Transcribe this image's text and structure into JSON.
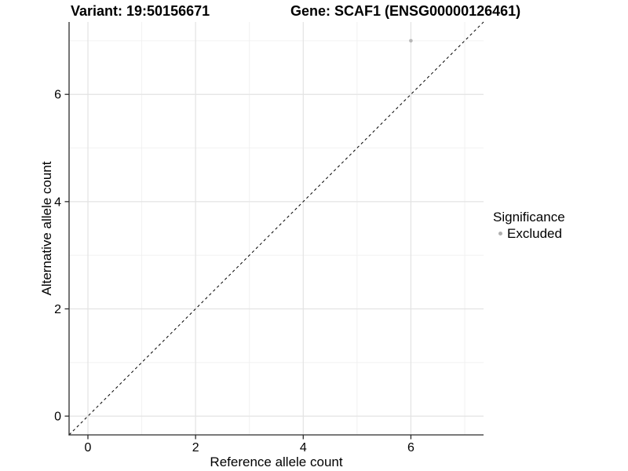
{
  "chart_data": {
    "type": "scatter",
    "titles": {
      "variant": "Variant: 19:50156671",
      "gene": "Gene: SCAF1 (ENSG00000126461)"
    },
    "xlabel": "Reference allele count",
    "ylabel": "Alternative allele count",
    "xlim": [
      -0.35,
      7.35
    ],
    "ylim": [
      -0.35,
      7.35
    ],
    "x_ticks": [
      0,
      2,
      4,
      6
    ],
    "y_ticks": [
      0,
      2,
      4,
      6
    ],
    "x_minor_gridlines": [
      1,
      3,
      5,
      7
    ],
    "y_minor_gridlines": [
      1,
      3,
      5,
      7
    ],
    "grid": true,
    "points": [
      {
        "x": 6,
        "y": 7,
        "significance": "Excluded"
      }
    ],
    "identity_line": {
      "slope": 1,
      "intercept": 0,
      "style": "dashed",
      "color": "#000000"
    },
    "legend": {
      "title": "Significance",
      "position": "right",
      "items": [
        {
          "label": "Excluded",
          "color": "#b0b0b0"
        }
      ]
    },
    "colors": {
      "point": "#b8b8b8",
      "major_grid": "#e3e3e3",
      "minor_grid": "#f0f0f0",
      "axis_line": "#2b2b2b",
      "text": "#000000",
      "background": "#ffffff"
    }
  }
}
